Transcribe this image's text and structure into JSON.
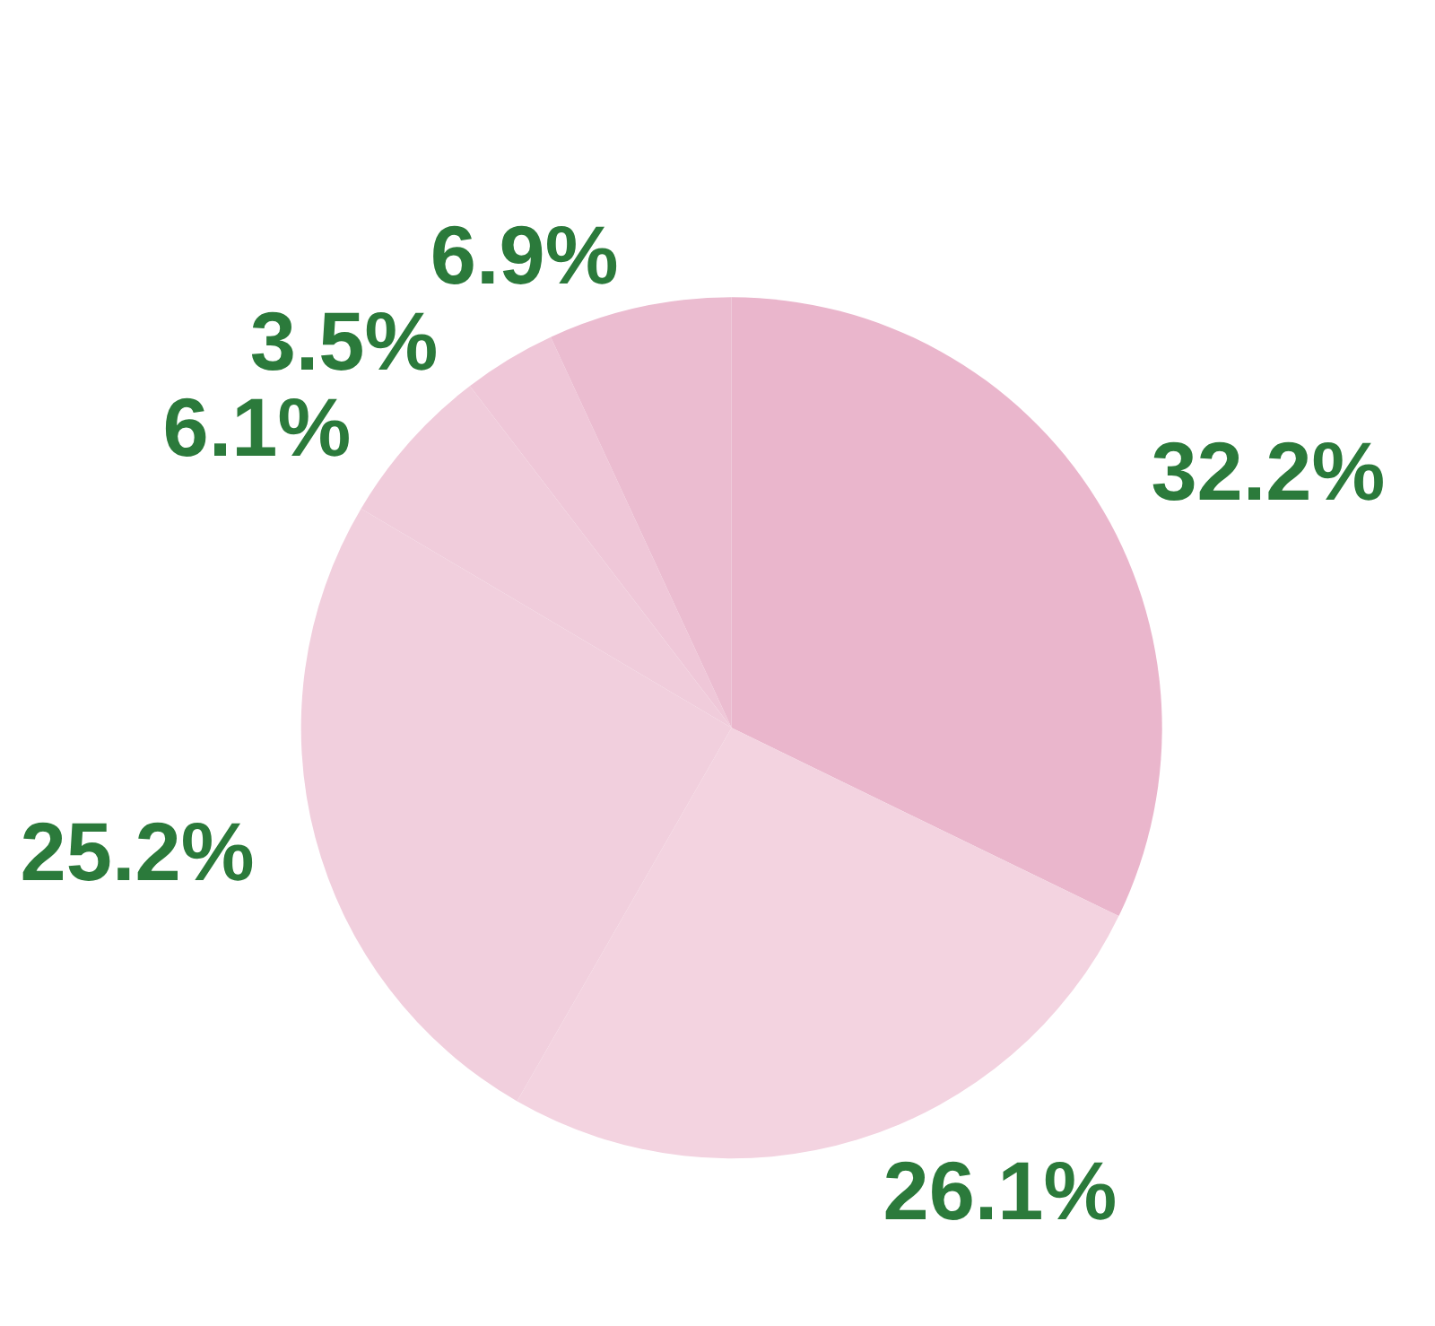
{
  "chart_data": {
    "type": "pie",
    "categories": [
      null,
      null,
      null,
      null,
      null,
      null
    ],
    "values": [
      32.2,
      26.1,
      25.2,
      6.1,
      3.5,
      6.9
    ],
    "value_labels": [
      "32.2%",
      "26.1%",
      "25.2%",
      "6.1%",
      "3.5%",
      "6.9%"
    ],
    "colors": [
      "#eab6cc",
      "#f3d3e0",
      "#f1cfdd",
      "#f0ccdb",
      "#efc7d8",
      "#ebbcd0"
    ]
  }
}
